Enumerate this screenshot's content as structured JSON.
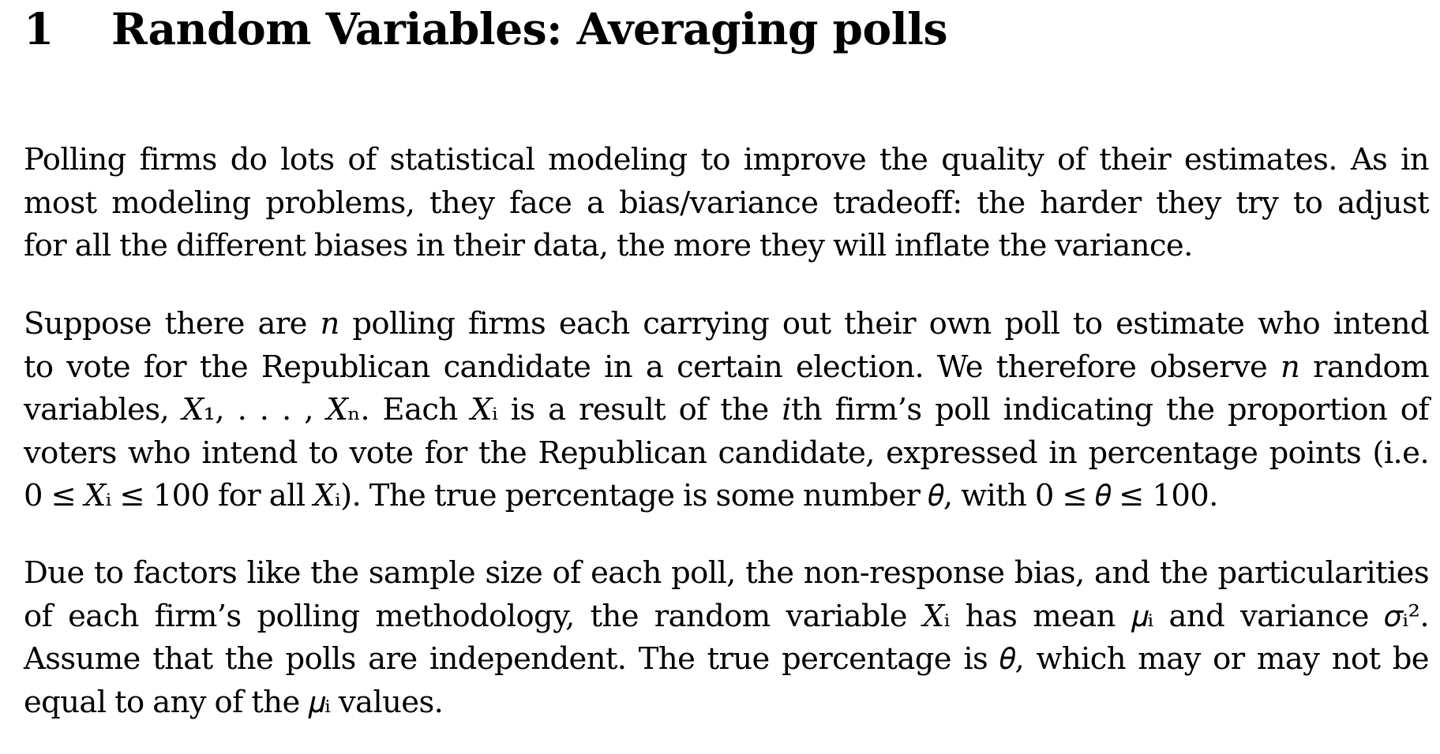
{
  "section": {
    "number": "1",
    "title": "Random Variables: Averaging polls"
  },
  "paragraphs": [
    {
      "lines": [
        "Polling firms do lots of statistical modeling to improve the quality of their estimates. As in",
        "most modeling problems, they face a bias/variance tradeoff: the harder they try to adjust",
        "for all the different biases in their data, the more they will inflate the variance."
      ]
    },
    {
      "lines": [
        "Suppose there are 𝑛 polling firms each carrying out their own poll to estimate who intend",
        "to vote for the Republican candidate in a certain election. We therefore observe 𝑛 random",
        "variables, 𝑋₁, . . . , 𝑋ₙ. Each 𝑋ᵢ is a result of the 𝑖th firm’s poll indicating the proportion of",
        "voters who intend to vote for the Republican candidate, expressed in percentage points (i.e.",
        "0 ≤ 𝑋ᵢ ≤ 100 for all 𝑋ᵢ). The true percentage is some number 𝜃, with 0 ≤ 𝜃 ≤ 100."
      ]
    },
    {
      "lines": [
        "Due to factors like the sample size of each poll, the non-response bias, and the particularities",
        "of each firm’s polling methodology, the random variable 𝑋ᵢ has mean 𝜇ᵢ and variance 𝜎ᵢ².",
        "Assume that the polls are independent. The true percentage is 𝜃, which may or may not be",
        "equal to any of the 𝜇ᵢ values."
      ]
    }
  ]
}
